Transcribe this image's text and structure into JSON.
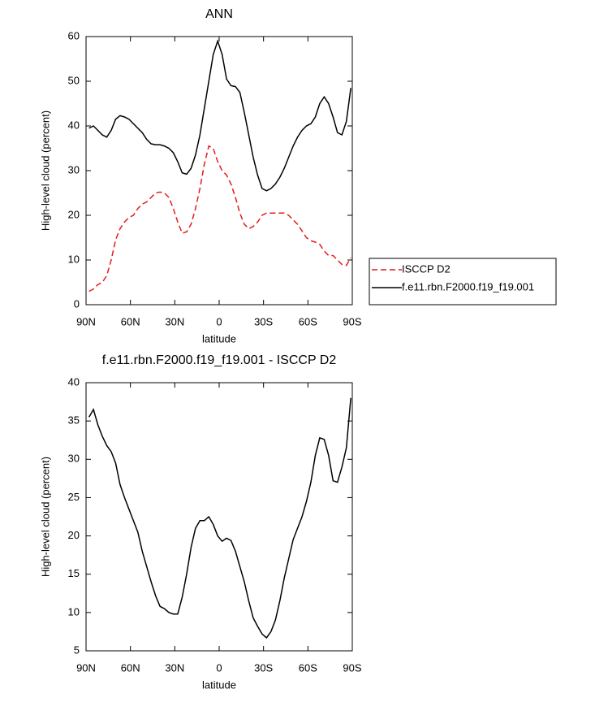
{
  "chart_data": [
    {
      "type": "line",
      "title": "ANN",
      "x_label": "latitude",
      "y_label": "High-level cloud (percent)",
      "x": [
        88,
        85,
        82,
        79,
        76,
        73,
        70,
        67,
        64,
        61,
        58,
        55,
        52,
        49,
        46,
        43,
        40,
        37,
        34,
        31,
        28,
        25,
        22,
        19,
        16,
        13,
        10,
        7,
        4,
        1,
        -2,
        -5,
        -8,
        -11,
        -14,
        -17,
        -20,
        -23,
        -26,
        -29,
        -32,
        -35,
        -38,
        -41,
        -44,
        -47,
        -50,
        -53,
        -56,
        -59,
        -62,
        -65,
        -68,
        -71,
        -74,
        -77,
        -80,
        -83,
        -86,
        -89
      ],
      "xlim": [
        90,
        -90
      ],
      "xticks": [
        {
          "value": 90,
          "label": "90N"
        },
        {
          "value": 60,
          "label": "60N"
        },
        {
          "value": 30,
          "label": "30N"
        },
        0,
        {
          "value": -30,
          "label": "30S"
        },
        {
          "value": -60,
          "label": "60S"
        },
        {
          "value": -90,
          "label": "90S"
        }
      ],
      "ylim": [
        0,
        60
      ],
      "yticks": [
        0,
        10,
        20,
        30,
        40,
        50,
        60
      ],
      "legend_position": "right",
      "series": [
        {
          "name": "ISCCP D2",
          "color": "#e41a1c",
          "dash": true,
          "values": [
            3,
            3.5,
            4.5,
            5,
            6.5,
            10,
            14.5,
            17,
            18.5,
            19.5,
            20,
            21.5,
            22.5,
            23,
            24,
            25,
            25.2,
            25,
            24,
            21.5,
            18.5,
            16,
            16.3,
            18,
            21.5,
            26,
            31.5,
            35.5,
            35,
            32,
            30,
            29,
            27,
            24,
            20.5,
            18,
            17,
            17.5,
            18.5,
            20,
            20.5,
            20.5,
            20.5,
            20.5,
            20.5,
            20,
            19,
            18,
            16.5,
            15,
            14.3,
            14,
            13.5,
            12,
            11,
            11,
            10,
            9,
            8.8,
            10.5
          ]
        },
        {
          "name": "f.e11.rbn.F2000.f19_f19.001",
          "color": "#000000",
          "dash": false,
          "values": [
            39.5,
            40,
            39,
            38,
            37.5,
            39,
            41.5,
            42.3,
            42,
            41.5,
            40.5,
            39.5,
            38.5,
            37,
            36,
            35.8,
            35.8,
            35.5,
            35,
            34,
            32,
            29.5,
            29.2,
            30.5,
            33.5,
            38,
            44,
            50,
            56,
            59,
            56,
            50.5,
            49,
            48.8,
            47.5,
            43,
            38,
            33,
            29,
            26,
            25.5,
            26,
            27,
            28.5,
            30.5,
            33,
            35.5,
            37.5,
            39,
            40,
            40.5,
            42,
            45,
            46.5,
            45,
            42,
            38.5,
            38,
            41,
            48.5
          ]
        }
      ]
    },
    {
      "type": "line",
      "title": "f.e11.rbn.F2000.f19_f19.001 - ISCCP D2",
      "x_label": "latitude",
      "y_label": "High-level cloud (percent)",
      "x": [
        88,
        85,
        82,
        79,
        76,
        73,
        70,
        67,
        64,
        61,
        58,
        55,
        52,
        49,
        46,
        43,
        40,
        37,
        34,
        31,
        28,
        25,
        22,
        19,
        16,
        13,
        10,
        7,
        4,
        1,
        -2,
        -5,
        -8,
        -11,
        -14,
        -17,
        -20,
        -23,
        -26,
        -29,
        -32,
        -35,
        -38,
        -41,
        -44,
        -47,
        -50,
        -53,
        -56,
        -59,
        -62,
        -65,
        -68,
        -71,
        -74,
        -77,
        -80,
        -83,
        -86,
        -89
      ],
      "xlim": [
        90,
        -90
      ],
      "xticks": [
        {
          "value": 90,
          "label": "90N"
        },
        {
          "value": 60,
          "label": "60N"
        },
        {
          "value": 30,
          "label": "30N"
        },
        0,
        {
          "value": -30,
          "label": "30S"
        },
        {
          "value": -60,
          "label": "60S"
        },
        {
          "value": -90,
          "label": "90S"
        }
      ],
      "ylim": [
        5,
        40
      ],
      "yticks": [
        5,
        10,
        15,
        20,
        25,
        30,
        35,
        40
      ],
      "series": [
        {
          "color": "#000000",
          "dash": false,
          "values": [
            35.5,
            36.5,
            34.5,
            33,
            31.8,
            31,
            29.5,
            26.7,
            25,
            23.5,
            22,
            20.5,
            18,
            16,
            14,
            12.2,
            10.8,
            10.5,
            10,
            9.8,
            9.8,
            12,
            15,
            18.5,
            21,
            22,
            22,
            22.5,
            21.5,
            20,
            19.3,
            19.7,
            19.4,
            18,
            16,
            14,
            11.5,
            9.3,
            8.2,
            7.2,
            6.7,
            7.5,
            9,
            11.5,
            14.5,
            17,
            19.5,
            21,
            22.5,
            24.5,
            27,
            30.5,
            32.8,
            32.6,
            30.5,
            27.2,
            27,
            29,
            31.5,
            38
          ]
        }
      ]
    }
  ]
}
